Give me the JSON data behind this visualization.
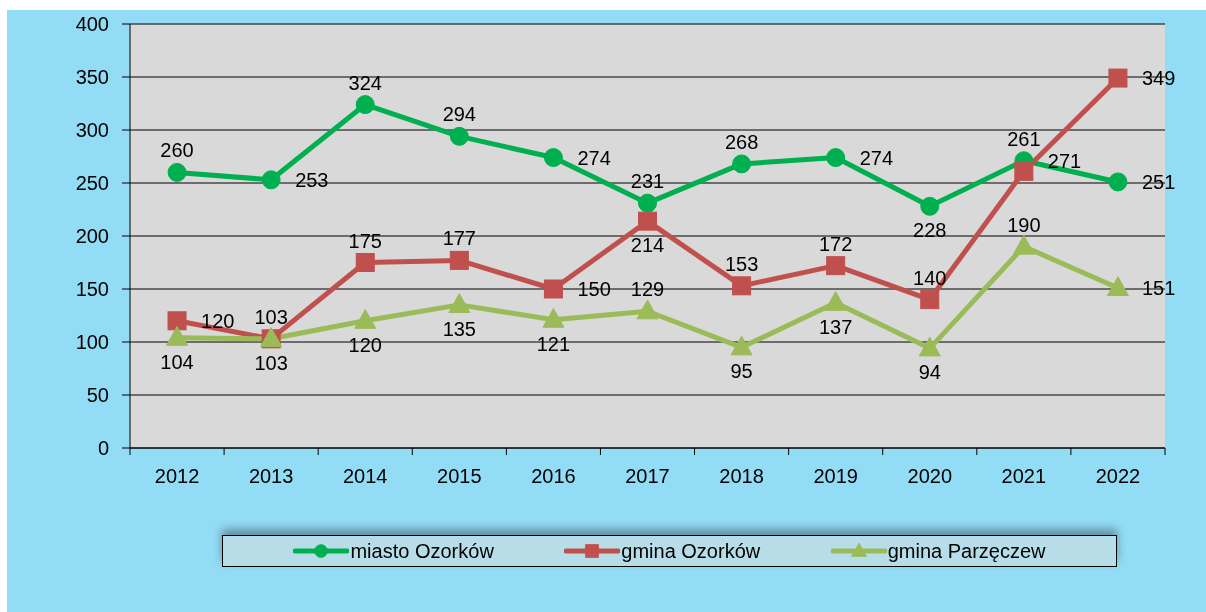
{
  "chart_data": {
    "type": "line",
    "categories": [
      "2012",
      "2013",
      "2014",
      "2015",
      "2016",
      "2017",
      "2018",
      "2019",
      "2020",
      "2021",
      "2022"
    ],
    "ylim": [
      0,
      400
    ],
    "yticks": [
      0,
      50,
      100,
      150,
      200,
      250,
      300,
      350,
      400
    ],
    "grid": "y",
    "legend": "bottom",
    "data_labels": true,
    "line_style": "solid",
    "series": [
      {
        "name": "miasto Ozorków",
        "color": "#00b050",
        "marker": "circle",
        "values": [
          260,
          253,
          324,
          294,
          274,
          231,
          268,
          274,
          228,
          271,
          251
        ]
      },
      {
        "name": "gmina Ozorków",
        "color": "#c0504d",
        "marker": "square",
        "values": [
          120,
          103,
          175,
          177,
          150,
          214,
          153,
          172,
          140,
          261,
          349
        ]
      },
      {
        "name": "gmina Parzęczew",
        "color": "#9bbb59",
        "marker": "triangle",
        "values": [
          104,
          103,
          120,
          135,
          121,
          129,
          95,
          137,
          94,
          190,
          151
        ]
      }
    ]
  }
}
